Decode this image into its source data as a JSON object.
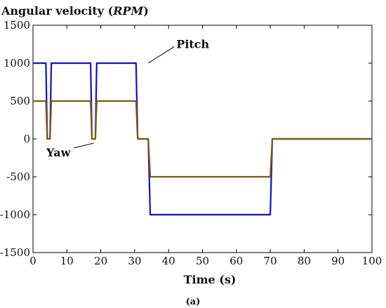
{
  "chart_data": {
    "type": "line",
    "title": "Angular velocity (RPM)",
    "title_parts": {
      "main": "Angular velocity (",
      "unit": "RPM",
      "close": ")"
    },
    "xlabel": "Time (s)",
    "ylabel": "",
    "caption": "(a)",
    "xlim": [
      0,
      100
    ],
    "ylim": [
      -1500,
      1500
    ],
    "xticks": [
      0,
      10,
      20,
      30,
      40,
      50,
      60,
      70,
      80,
      90,
      100
    ],
    "yticks": [
      1500,
      1000,
      500,
      0,
      -500,
      -1000,
      -1500
    ],
    "grid": false,
    "legend": "none",
    "series": [
      {
        "name": "Pitch",
        "color": "#1010c8",
        "x": [
          0,
          3.8,
          4.2,
          5.0,
          5.4,
          17.0,
          17.4,
          18.4,
          18.8,
          30.4,
          30.9,
          34.0,
          34.6,
          70.0,
          70.6,
          100
        ],
        "y": [
          1000,
          1000,
          0,
          0,
          1000,
          1000,
          0,
          0,
          1000,
          1000,
          0,
          0,
          -1000,
          -1000,
          0,
          0
        ]
      },
      {
        "name": "Yaw",
        "color": "#7a5a10",
        "x": [
          0,
          3.8,
          4.2,
          5.0,
          5.4,
          17.0,
          17.4,
          18.4,
          18.8,
          30.4,
          30.9,
          34.0,
          34.6,
          70.0,
          70.6,
          100
        ],
        "y": [
          500,
          500,
          0,
          0,
          500,
          500,
          0,
          0,
          500,
          500,
          0,
          0,
          -500,
          -500,
          0,
          0
        ]
      }
    ],
    "annotations": [
      {
        "text": "Pitch",
        "x": 34,
        "y": 1000,
        "tx": 42.3,
        "ty": 1200
      },
      {
        "text": "Yaw",
        "x": 18,
        "y": -55,
        "tx": 7.5,
        "ty": -230
      }
    ]
  }
}
